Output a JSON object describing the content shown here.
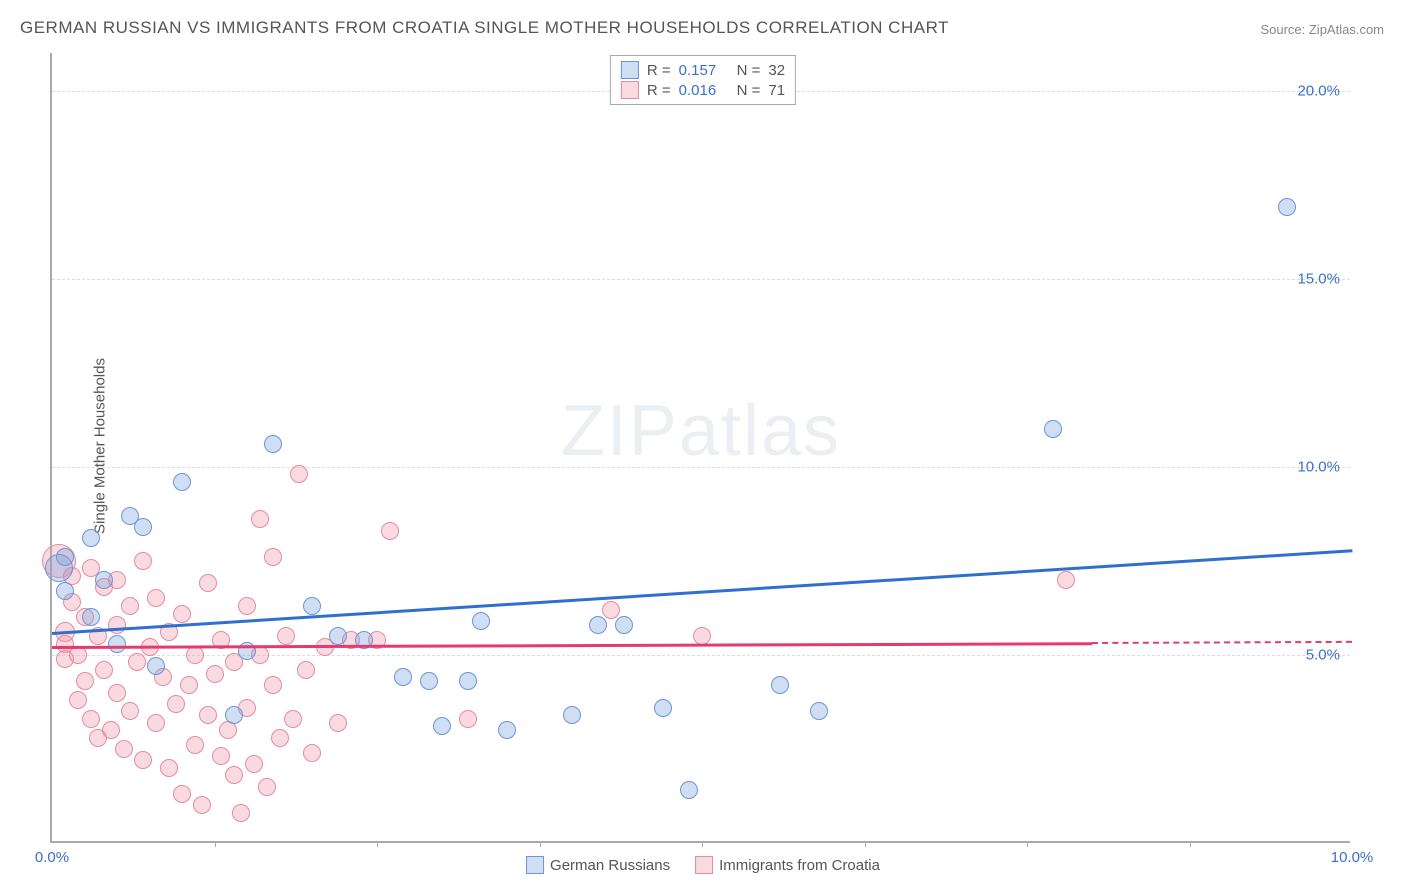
{
  "title": "GERMAN RUSSIAN VS IMMIGRANTS FROM CROATIA SINGLE MOTHER HOUSEHOLDS CORRELATION CHART",
  "source": "Source: ZipAtlas.com",
  "watermark": {
    "bold": "ZIP",
    "light": "atlas"
  },
  "chart": {
    "type": "scatter",
    "ylabel": "Single Mother Households",
    "xlim": [
      0,
      10
    ],
    "ylim": [
      0,
      21
    ],
    "xtick_positions": [
      0,
      10
    ],
    "xtick_labels": [
      "0.0%",
      "10.0%"
    ],
    "xtick_minor": [
      1.25,
      2.5,
      3.75,
      5.0,
      6.25,
      7.5,
      8.75
    ],
    "ytick_positions": [
      5,
      10,
      15,
      20
    ],
    "ytick_labels": [
      "5.0%",
      "10.0%",
      "15.0%",
      "20.0%"
    ],
    "background_color": "#ffffff",
    "grid_color": "#dddddd",
    "axis_color": "#aaaaaa",
    "tick_label_color": "#3b6fc9",
    "series": [
      {
        "name": "German Russians",
        "key": "german_russians",
        "fill_color": "rgba(120,160,220,0.35)",
        "stroke_color": "#6a96d6",
        "trend_color": "#2f6fd0",
        "r_value": "0.157",
        "n_value": "32",
        "trend": {
          "x1": 0,
          "y1": 5.6,
          "x2": 10,
          "y2": 7.8
        },
        "points": [
          {
            "x": 0.05,
            "y": 7.3,
            "r": 14
          },
          {
            "x": 0.1,
            "y": 6.7,
            "r": 9
          },
          {
            "x": 0.1,
            "y": 7.6,
            "r": 9
          },
          {
            "x": 0.3,
            "y": 8.1,
            "r": 9
          },
          {
            "x": 0.3,
            "y": 6.0,
            "r": 9
          },
          {
            "x": 0.4,
            "y": 7.0,
            "r": 9
          },
          {
            "x": 0.5,
            "y": 5.3,
            "r": 9
          },
          {
            "x": 0.6,
            "y": 8.7,
            "r": 9
          },
          {
            "x": 0.7,
            "y": 8.4,
            "r": 9
          },
          {
            "x": 0.8,
            "y": 4.7,
            "r": 9
          },
          {
            "x": 1.0,
            "y": 9.6,
            "r": 9
          },
          {
            "x": 1.4,
            "y": 3.4,
            "r": 9
          },
          {
            "x": 1.5,
            "y": 5.1,
            "r": 9
          },
          {
            "x": 1.7,
            "y": 10.6,
            "r": 9
          },
          {
            "x": 2.0,
            "y": 6.3,
            "r": 9
          },
          {
            "x": 2.2,
            "y": 5.5,
            "r": 9
          },
          {
            "x": 2.4,
            "y": 5.4,
            "r": 9
          },
          {
            "x": 2.7,
            "y": 4.4,
            "r": 9
          },
          {
            "x": 2.9,
            "y": 4.3,
            "r": 9
          },
          {
            "x": 3.0,
            "y": 3.1,
            "r": 9
          },
          {
            "x": 3.2,
            "y": 4.3,
            "r": 9
          },
          {
            "x": 3.3,
            "y": 5.9,
            "r": 9
          },
          {
            "x": 3.5,
            "y": 3.0,
            "r": 9
          },
          {
            "x": 4.0,
            "y": 3.4,
            "r": 9
          },
          {
            "x": 4.2,
            "y": 5.8,
            "r": 9
          },
          {
            "x": 4.4,
            "y": 5.8,
            "r": 9
          },
          {
            "x": 4.7,
            "y": 3.6,
            "r": 9
          },
          {
            "x": 4.9,
            "y": 1.4,
            "r": 9
          },
          {
            "x": 5.6,
            "y": 4.2,
            "r": 9
          },
          {
            "x": 5.9,
            "y": 3.5,
            "r": 9
          },
          {
            "x": 7.7,
            "y": 11.0,
            "r": 9
          },
          {
            "x": 9.5,
            "y": 16.9,
            "r": 9
          }
        ]
      },
      {
        "name": "Immigrants from Croatia",
        "key": "immigrants_croatia",
        "fill_color": "rgba(240,150,170,0.35)",
        "stroke_color": "#e48ca0",
        "trend_color": "#e23b6e",
        "r_value": "0.016",
        "n_value": "71",
        "trend": {
          "x1": 0,
          "y1": 5.25,
          "x2": 8.0,
          "y2": 5.35
        },
        "trend_dash": {
          "x1": 8.0,
          "y1": 5.35,
          "x2": 10,
          "y2": 5.38
        },
        "points": [
          {
            "x": 0.05,
            "y": 7.5,
            "r": 17
          },
          {
            "x": 0.1,
            "y": 5.6,
            "r": 10
          },
          {
            "x": 0.1,
            "y": 5.3,
            "r": 9
          },
          {
            "x": 0.1,
            "y": 4.9,
            "r": 9
          },
          {
            "x": 0.15,
            "y": 6.4,
            "r": 9
          },
          {
            "x": 0.15,
            "y": 7.1,
            "r": 9
          },
          {
            "x": 0.2,
            "y": 5.0,
            "r": 9
          },
          {
            "x": 0.2,
            "y": 3.8,
            "r": 9
          },
          {
            "x": 0.25,
            "y": 6.0,
            "r": 9
          },
          {
            "x": 0.25,
            "y": 4.3,
            "r": 9
          },
          {
            "x": 0.3,
            "y": 7.3,
            "r": 9
          },
          {
            "x": 0.3,
            "y": 3.3,
            "r": 9
          },
          {
            "x": 0.35,
            "y": 5.5,
            "r": 9
          },
          {
            "x": 0.35,
            "y": 2.8,
            "r": 9
          },
          {
            "x": 0.4,
            "y": 6.8,
            "r": 9
          },
          {
            "x": 0.4,
            "y": 4.6,
            "r": 9
          },
          {
            "x": 0.45,
            "y": 3.0,
            "r": 9
          },
          {
            "x": 0.5,
            "y": 7.0,
            "r": 9
          },
          {
            "x": 0.5,
            "y": 5.8,
            "r": 9
          },
          {
            "x": 0.5,
            "y": 4.0,
            "r": 9
          },
          {
            "x": 0.55,
            "y": 2.5,
            "r": 9
          },
          {
            "x": 0.6,
            "y": 6.3,
            "r": 9
          },
          {
            "x": 0.6,
            "y": 3.5,
            "r": 9
          },
          {
            "x": 0.65,
            "y": 4.8,
            "r": 9
          },
          {
            "x": 0.7,
            "y": 7.5,
            "r": 9
          },
          {
            "x": 0.7,
            "y": 2.2,
            "r": 9
          },
          {
            "x": 0.75,
            "y": 5.2,
            "r": 9
          },
          {
            "x": 0.8,
            "y": 3.2,
            "r": 9
          },
          {
            "x": 0.8,
            "y": 6.5,
            "r": 9
          },
          {
            "x": 0.85,
            "y": 4.4,
            "r": 9
          },
          {
            "x": 0.9,
            "y": 2.0,
            "r": 9
          },
          {
            "x": 0.9,
            "y": 5.6,
            "r": 9
          },
          {
            "x": 0.95,
            "y": 3.7,
            "r": 9
          },
          {
            "x": 1.0,
            "y": 1.3,
            "r": 9
          },
          {
            "x": 1.0,
            "y": 6.1,
            "r": 9
          },
          {
            "x": 1.05,
            "y": 4.2,
            "r": 9
          },
          {
            "x": 1.1,
            "y": 2.6,
            "r": 9
          },
          {
            "x": 1.1,
            "y": 5.0,
            "r": 9
          },
          {
            "x": 1.15,
            "y": 1.0,
            "r": 9
          },
          {
            "x": 1.2,
            "y": 3.4,
            "r": 9
          },
          {
            "x": 1.2,
            "y": 6.9,
            "r": 9
          },
          {
            "x": 1.25,
            "y": 4.5,
            "r": 9
          },
          {
            "x": 1.3,
            "y": 2.3,
            "r": 9
          },
          {
            "x": 1.3,
            "y": 5.4,
            "r": 9
          },
          {
            "x": 1.35,
            "y": 3.0,
            "r": 9
          },
          {
            "x": 1.4,
            "y": 1.8,
            "r": 9
          },
          {
            "x": 1.4,
            "y": 4.8,
            "r": 9
          },
          {
            "x": 1.45,
            "y": 0.8,
            "r": 9
          },
          {
            "x": 1.5,
            "y": 6.3,
            "r": 9
          },
          {
            "x": 1.5,
            "y": 3.6,
            "r": 9
          },
          {
            "x": 1.55,
            "y": 2.1,
            "r": 9
          },
          {
            "x": 1.6,
            "y": 8.6,
            "r": 9
          },
          {
            "x": 1.6,
            "y": 5.0,
            "r": 9
          },
          {
            "x": 1.65,
            "y": 1.5,
            "r": 9
          },
          {
            "x": 1.7,
            "y": 4.2,
            "r": 9
          },
          {
            "x": 1.7,
            "y": 7.6,
            "r": 9
          },
          {
            "x": 1.75,
            "y": 2.8,
            "r": 9
          },
          {
            "x": 1.8,
            "y": 5.5,
            "r": 9
          },
          {
            "x": 1.85,
            "y": 3.3,
            "r": 9
          },
          {
            "x": 1.9,
            "y": 9.8,
            "r": 9
          },
          {
            "x": 1.95,
            "y": 4.6,
            "r": 9
          },
          {
            "x": 2.0,
            "y": 2.4,
            "r": 9
          },
          {
            "x": 2.1,
            "y": 5.2,
            "r": 9
          },
          {
            "x": 2.2,
            "y": 3.2,
            "r": 9
          },
          {
            "x": 2.3,
            "y": 5.4,
            "r": 9
          },
          {
            "x": 2.5,
            "y": 5.4,
            "r": 9
          },
          {
            "x": 2.6,
            "y": 8.3,
            "r": 9
          },
          {
            "x": 3.2,
            "y": 3.3,
            "r": 9
          },
          {
            "x": 4.3,
            "y": 6.2,
            "r": 9
          },
          {
            "x": 5.0,
            "y": 5.5,
            "r": 9
          },
          {
            "x": 7.8,
            "y": 7.0,
            "r": 9
          }
        ]
      }
    ]
  },
  "legend_top": {
    "r_label": "R  =",
    "n_label": "N  ="
  },
  "legend_bottom": {
    "series1": "German Russians",
    "series2": "Immigrants from Croatia"
  }
}
